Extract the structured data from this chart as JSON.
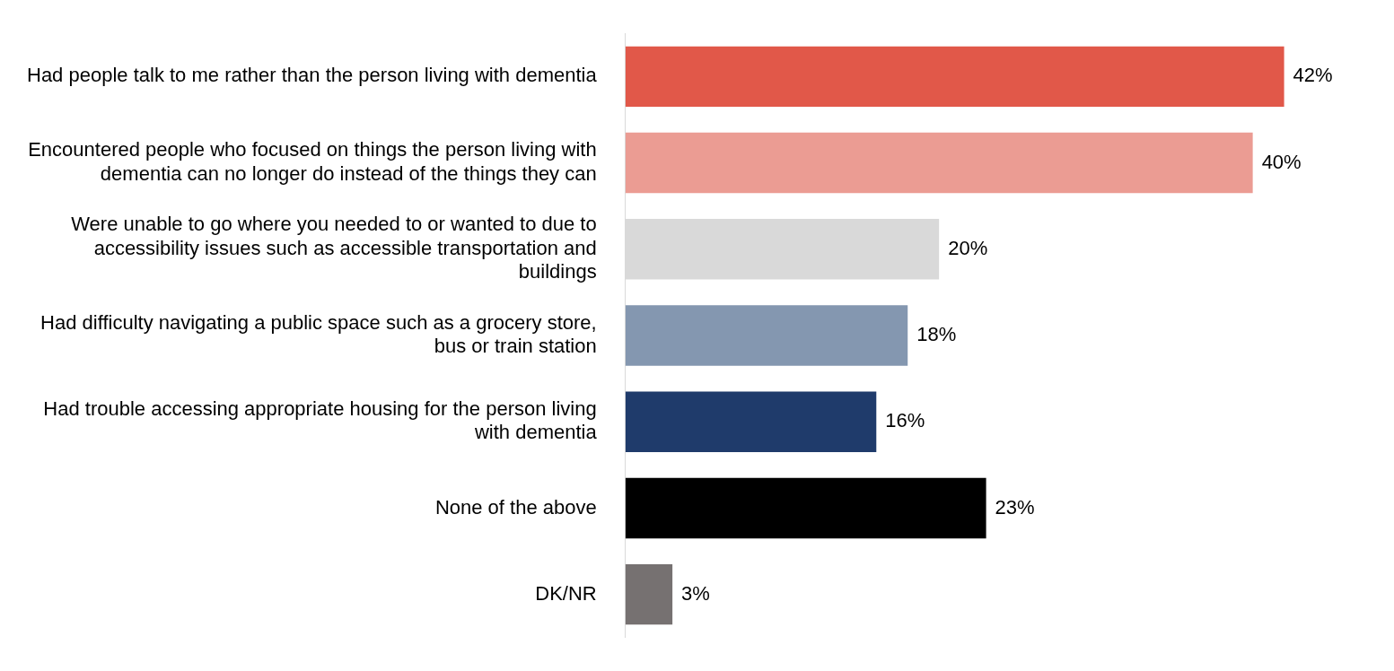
{
  "chart_data": {
    "type": "bar",
    "orientation": "horizontal",
    "categories": [
      "Had people talk to me rather than the person living with dementia",
      "Encountered people who focused on things the person living with dementia can no longer do instead of the things they can",
      "Were unable to go where you needed to or wanted to due to accessibility issues such as accessible transportation and buildings",
      "Had difficulty navigating a public space such as a grocery store, bus or train station",
      "Had trouble accessing appropriate housing for the person living with dementia",
      "None of the above",
      "DK/NR"
    ],
    "values": [
      42,
      40,
      20,
      18,
      16,
      23,
      3
    ],
    "colors": [
      "#e15849",
      "#eb9c93",
      "#d9d9d9",
      "#8497b0",
      "#1f3b6b",
      "#000000",
      "#767171"
    ],
    "value_labels": [
      "42%",
      "40%",
      "20%",
      "18%",
      "16%",
      "23%",
      "3%"
    ],
    "grid": false,
    "legend": false,
    "tick_labels": "y"
  }
}
